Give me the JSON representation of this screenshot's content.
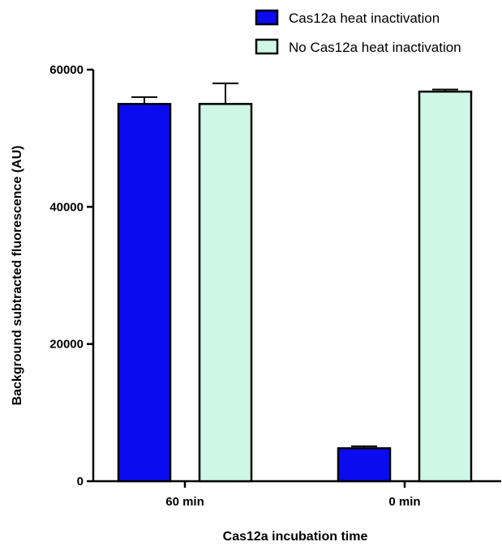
{
  "chart_data": {
    "type": "bar",
    "categories": [
      "60 min",
      "0 min"
    ],
    "series": [
      {
        "name": "Cas12a heat inactivation",
        "color": "#0b0bef",
        "values": [
          55000,
          4800
        ],
        "errors": [
          1000,
          300
        ]
      },
      {
        "name": "No Cas12a heat inactivation",
        "color": "#cff7e7",
        "values": [
          55000,
          56800
        ],
        "errors": [
          3000,
          300
        ]
      }
    ],
    "xlabel": "Cas12a incubation time",
    "ylabel": "Background subtracted fluorescence (AU)",
    "ylim": [
      0,
      60000
    ],
    "yticks": [
      "0",
      "20000",
      "40000",
      "60000"
    ],
    "ytick_values": [
      0,
      20000,
      40000,
      60000
    ],
    "legend_position": "top-right",
    "grid": false
  }
}
